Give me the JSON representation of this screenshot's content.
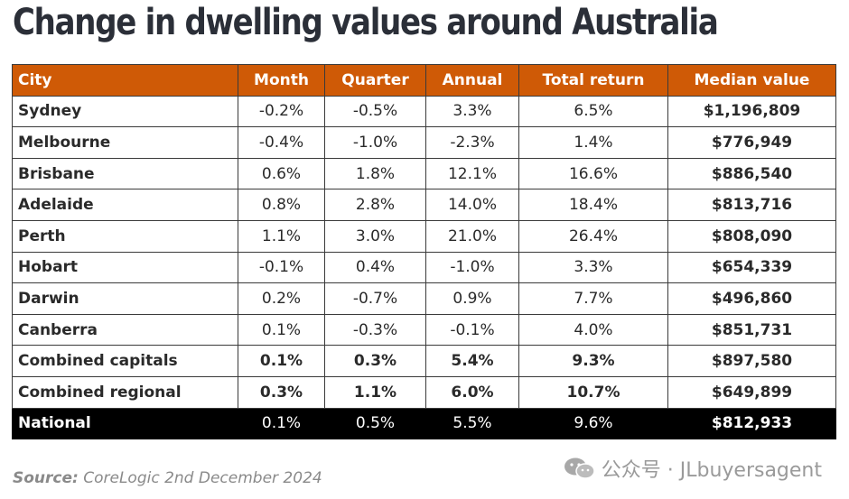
{
  "title": "Change in dwelling values around Australia",
  "chart_data": {
    "type": "table",
    "title": "Change in dwelling values around Australia",
    "columns": [
      "City",
      "Month",
      "Quarter",
      "Annual",
      "Total return",
      "Median value"
    ],
    "rows": [
      {
        "city": "Sydney",
        "month": "-0.2%",
        "quarter": "-0.5%",
        "annual": "3.3%",
        "total_return": "6.5%",
        "median_value": "$1,196,809"
      },
      {
        "city": "Melbourne",
        "month": "-0.4%",
        "quarter": "-1.0%",
        "annual": "-2.3%",
        "total_return": "1.4%",
        "median_value": "$776,949"
      },
      {
        "city": "Brisbane",
        "month": "0.6%",
        "quarter": "1.8%",
        "annual": "12.1%",
        "total_return": "16.6%",
        "median_value": "$886,540"
      },
      {
        "city": "Adelaide",
        "month": "0.8%",
        "quarter": "2.8%",
        "annual": "14.0%",
        "total_return": "18.4%",
        "median_value": "$813,716"
      },
      {
        "city": "Perth",
        "month": "1.1%",
        "quarter": "3.0%",
        "annual": "21.0%",
        "total_return": "26.4%",
        "median_value": "$808,090"
      },
      {
        "city": "Hobart",
        "month": "-0.1%",
        "quarter": "0.4%",
        "annual": "-1.0%",
        "total_return": "3.3%",
        "median_value": "$654,339"
      },
      {
        "city": "Darwin",
        "month": "0.2%",
        "quarter": "-0.7%",
        "annual": "0.9%",
        "total_return": "7.7%",
        "median_value": "$496,860"
      },
      {
        "city": "Canberra",
        "month": "0.1%",
        "quarter": "-0.3%",
        "annual": "-0.1%",
        "total_return": "4.0%",
        "median_value": "$851,731"
      },
      {
        "city": "Combined capitals",
        "month": "0.1%",
        "quarter": "0.3%",
        "annual": "5.4%",
        "total_return": "9.3%",
        "median_value": "$897,580",
        "emphasis": true
      },
      {
        "city": "Combined regional",
        "month": "0.3%",
        "quarter": "1.1%",
        "annual": "6.0%",
        "total_return": "10.7%",
        "median_value": "$649,899",
        "emphasis": true
      },
      {
        "city": "National",
        "month": "0.1%",
        "quarter": "0.5%",
        "annual": "5.5%",
        "total_return": "9.6%",
        "median_value": "$812,933",
        "highlight": true
      }
    ]
  },
  "source": {
    "label": "Source:",
    "text": " CoreLogic 2nd December 2024"
  },
  "watermark": {
    "icon": "wechat-icon",
    "text": "公众号 · JLbuyersagent"
  },
  "colors": {
    "header_bg": "#cf5a06",
    "national_bg": "#000000"
  }
}
